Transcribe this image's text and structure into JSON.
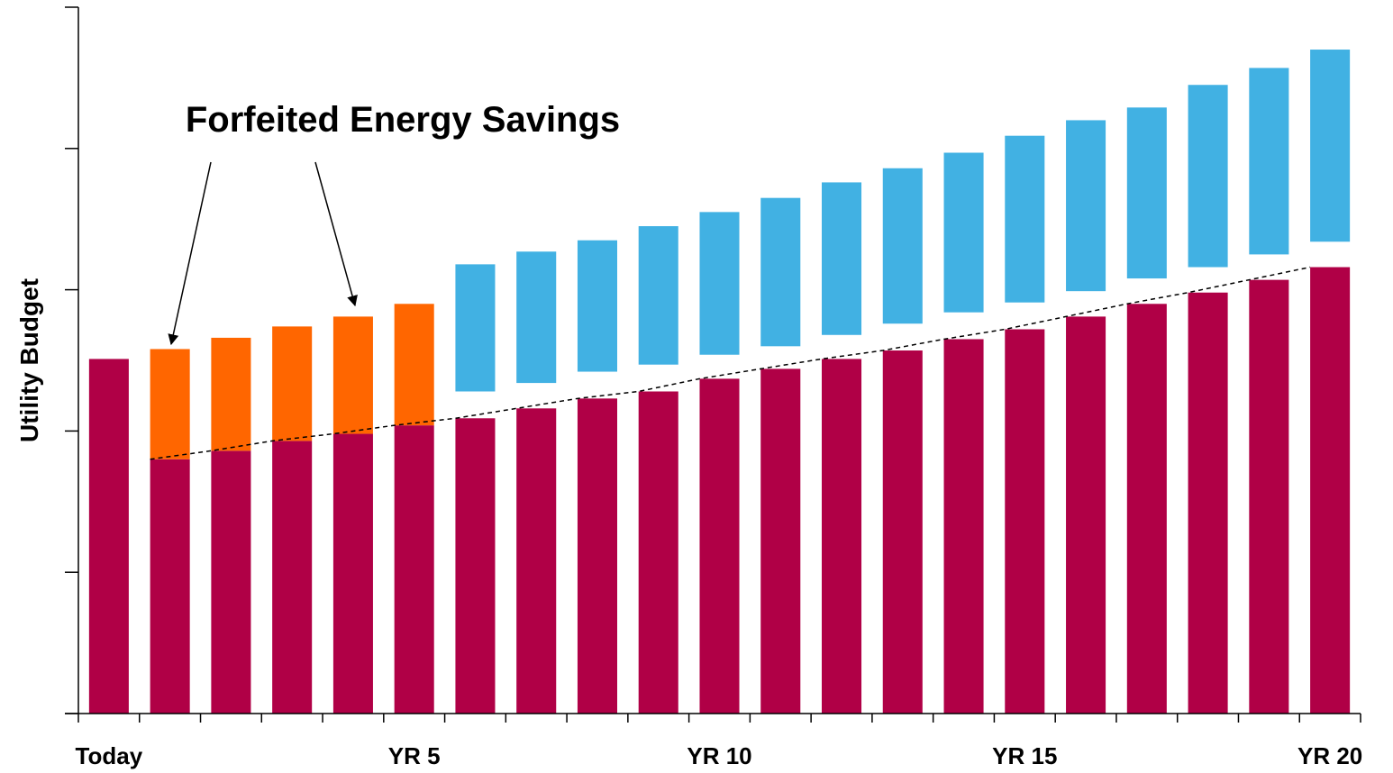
{
  "chart_data": {
    "type": "bar",
    "y_label": "Utility Budget",
    "annotation": "Forfeited Energy Savings",
    "categories": [
      "Today",
      null,
      null,
      null,
      null,
      "YR 5",
      null,
      null,
      null,
      null,
      "YR 10",
      null,
      null,
      null,
      null,
      "YR 15",
      null,
      null,
      null,
      null,
      "YR 20"
    ],
    "ylim": [
      0,
      5
    ],
    "yticks": [
      0,
      1,
      2,
      3,
      4,
      5
    ],
    "series": [
      {
        "color": "#b00046",
        "values": [
          2.51,
          1.8,
          1.86,
          1.93,
          1.98,
          2.04,
          2.09,
          2.16,
          2.23,
          2.28,
          2.37,
          2.44,
          2.51,
          2.57,
          2.65,
          2.72,
          2.81,
          2.9,
          2.98,
          3.07,
          3.16
        ]
      },
      {
        "color": "#ff6600",
        "stacked": true,
        "values": [
          null,
          0.78,
          0.8,
          0.81,
          0.83,
          0.86,
          null,
          null,
          null,
          null,
          null,
          null,
          null,
          null,
          null,
          null,
          null,
          null,
          null,
          null,
          null
        ]
      },
      {
        "color": "#41b1e3",
        "floating": true,
        "values": [
          null,
          null,
          null,
          null,
          null,
          null,
          3.18,
          3.27,
          3.35,
          3.45,
          3.55,
          3.65,
          3.76,
          3.86,
          3.97,
          4.09,
          4.2,
          4.29,
          4.45,
          4.57,
          4.7
        ],
        "bottoms": [
          null,
          null,
          null,
          null,
          null,
          null,
          2.28,
          2.34,
          2.42,
          2.47,
          2.54,
          2.6,
          2.68,
          2.76,
          2.84,
          2.91,
          2.99,
          3.08,
          3.16,
          3.25,
          3.34
        ]
      },
      {
        "type": "line",
        "style": "dashed",
        "color": "#000000",
        "values": [
          null,
          1.8,
          1.86,
          1.93,
          1.98,
          2.04,
          2.09,
          2.16,
          2.23,
          2.28,
          2.37,
          2.44,
          2.51,
          2.57,
          2.65,
          2.72,
          2.81,
          2.9,
          2.98,
          3.07,
          3.16
        ]
      }
    ]
  }
}
